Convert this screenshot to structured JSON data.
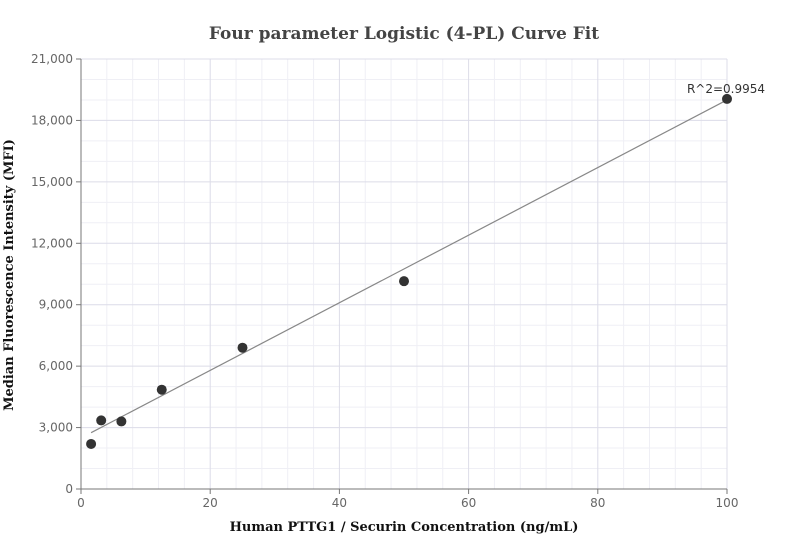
{
  "chart_data": {
    "type": "scatter",
    "title": "Four parameter Logistic (4-PL) Curve Fit",
    "xlabel": "Human PTTG1 / Securin Concentration (ng/mL)",
    "ylabel": "Median Fluorescence Intensity (MFI)",
    "xlim": [
      0,
      100
    ],
    "ylim": [
      0,
      21000
    ],
    "x_ticks": [
      0,
      20,
      40,
      60,
      80,
      100
    ],
    "x_tick_labels": [
      "0",
      "20",
      "40",
      "60",
      "80",
      "100"
    ],
    "y_ticks": [
      0,
      3000,
      6000,
      9000,
      12000,
      15000,
      18000,
      21000
    ],
    "y_tick_labels": [
      "0",
      "3,000",
      "6,000",
      "9,000",
      "12,000",
      "15,000",
      "18,000",
      "21,000"
    ],
    "grid": true,
    "series": [
      {
        "x": [
          1.5625,
          3.125,
          6.25,
          12.5,
          25,
          50,
          100
        ],
        "y": [
          2200,
          3350,
          3300,
          4850,
          6900,
          10150,
          19050
        ]
      }
    ],
    "fit_line": {
      "x": [
        1.5625,
        100
      ],
      "y": [
        2750,
        19000
      ]
    },
    "annotation": {
      "text": "R^2=0.9954",
      "x": 100,
      "y": 19050
    },
    "colors": {
      "points": "#333333",
      "fit_line": "#888888"
    }
  }
}
